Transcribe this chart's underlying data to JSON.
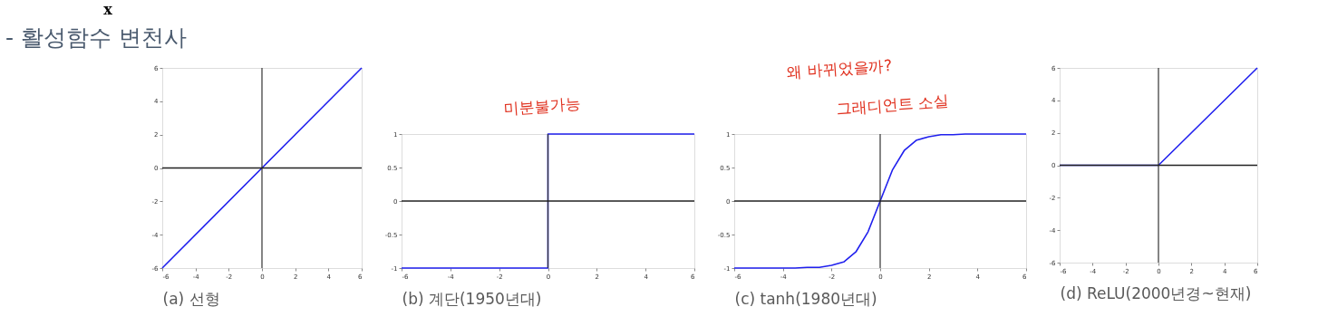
{
  "chart_data": [
    {
      "type": "line",
      "title": "- 활성함수 변천사",
      "xlabel": "(a) 선형",
      "x": [
        -6,
        6
      ],
      "series": [
        {
          "color": "#2020ee",
          "values": [
            -6,
            6
          ]
        }
      ],
      "xlim": [
        -6,
        6
      ],
      "ylim": [
        -6,
        6
      ],
      "xticks": [
        -6,
        -4,
        -2,
        0,
        2,
        4,
        6
      ],
      "yticks": [
        -6,
        -4,
        -2,
        0,
        2,
        4,
        6
      ],
      "grid": false,
      "legend": false,
      "annotations": [
        "x"
      ],
      "ref_lines": [
        {
          "axis": "x",
          "value": 0,
          "color": "#333333"
        },
        {
          "axis": "y",
          "value": 0,
          "color": "#222222"
        }
      ]
    },
    {
      "type": "line",
      "xlabel": "(b) 계단(1950년대)",
      "x": [
        -6,
        0,
        0,
        6
      ],
      "series": [
        {
          "color": "#2020ee",
          "values": [
            -1,
            -1,
            1,
            1
          ]
        }
      ],
      "xlim": [
        -6,
        6
      ],
      "ylim": [
        -1,
        1
      ],
      "xticks": [
        -6,
        -4,
        -2,
        0,
        2,
        4,
        6
      ],
      "yticks": [
        -1,
        -0.5,
        0,
        0.5,
        1
      ],
      "grid": false,
      "legend": false,
      "annotations": [
        "미분불가능"
      ],
      "ref_lines": [
        {
          "axis": "x",
          "value": 0,
          "color": "#333333"
        },
        {
          "axis": "y",
          "value": 0,
          "color": "#222222"
        }
      ]
    },
    {
      "type": "line",
      "xlabel": "(c) tanh(1980년대)",
      "x": [
        -6,
        -5,
        -4,
        -3.5,
        -3,
        -2.5,
        -2,
        -1.5,
        -1,
        -0.5,
        0,
        0.5,
        1,
        1.5,
        2,
        2.5,
        3,
        3.5,
        4,
        5,
        6
      ],
      "series": [
        {
          "color": "#2020ee",
          "values": [
            -1,
            -1,
            -1,
            -1,
            -0.99,
            -0.99,
            -0.96,
            -0.91,
            -0.76,
            -0.46,
            0,
            0.46,
            0.76,
            0.91,
            0.96,
            0.99,
            0.99,
            1,
            1,
            1,
            1
          ]
        }
      ],
      "xlim": [
        -6,
        6
      ],
      "ylim": [
        -1,
        1
      ],
      "xticks": [
        -6,
        -4,
        -2,
        0,
        2,
        4,
        6
      ],
      "yticks": [
        -1,
        -0.5,
        0,
        0.5,
        1
      ],
      "grid": false,
      "legend": false,
      "annotations": [
        "왜 바뀌었을까?",
        "그래디언트 소실"
      ],
      "ref_lines": [
        {
          "axis": "x",
          "value": 0,
          "color": "#333333"
        },
        {
          "axis": "y",
          "value": 0,
          "color": "#222222"
        }
      ]
    },
    {
      "type": "line",
      "xlabel": "(d) ReLU(2000년경~현재)",
      "x": [
        -6,
        0,
        6
      ],
      "series": [
        {
          "color": "#2020ee",
          "values": [
            0,
            0,
            6
          ]
        }
      ],
      "xlim": [
        -6,
        6
      ],
      "ylim": [
        -6,
        6
      ],
      "xticks": [
        -6,
        -4,
        -2,
        0,
        2,
        4,
        6
      ],
      "yticks": [
        -6,
        -4,
        -2,
        0,
        2,
        4,
        6
      ],
      "grid": false,
      "legend": false,
      "ref_lines": [
        {
          "axis": "x",
          "value": 0,
          "color": "#333333"
        },
        {
          "axis": "y",
          "value": 0,
          "color": "#222222"
        }
      ]
    }
  ]
}
